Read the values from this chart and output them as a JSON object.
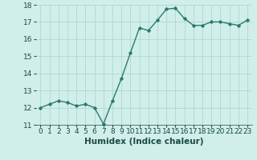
{
  "x": [
    0,
    1,
    2,
    3,
    4,
    5,
    6,
    7,
    8,
    9,
    10,
    11,
    12,
    13,
    14,
    15,
    16,
    17,
    18,
    19,
    20,
    21,
    22,
    23
  ],
  "y": [
    12.0,
    12.2,
    12.4,
    12.3,
    12.1,
    12.2,
    12.0,
    11.05,
    12.4,
    13.7,
    15.2,
    16.65,
    16.5,
    17.1,
    17.75,
    17.8,
    17.2,
    16.8,
    16.8,
    17.0,
    17.0,
    16.9,
    16.8,
    17.1
  ],
  "line_color": "#2d7a6e",
  "marker": "D",
  "marker_size": 2.0,
  "bg_color": "#d0eeea",
  "grid_color": "#aed8d2",
  "xlabel": "Humidex (Indice chaleur)",
  "xlabel_fontsize": 7.5,
  "ylim": [
    11,
    18
  ],
  "xlim": [
    -0.5,
    23.5
  ],
  "yticks": [
    11,
    12,
    13,
    14,
    15,
    16,
    17,
    18
  ],
  "xticks": [
    0,
    1,
    2,
    3,
    4,
    5,
    6,
    7,
    8,
    9,
    10,
    11,
    12,
    13,
    14,
    15,
    16,
    17,
    18,
    19,
    20,
    21,
    22,
    23
  ],
  "tick_fontsize": 6.5,
  "line_width": 1.0
}
